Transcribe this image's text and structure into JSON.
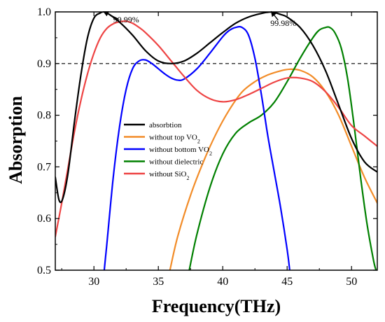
{
  "chart_data": {
    "type": "line",
    "title": "",
    "xlabel": "Frequency(THz)",
    "ylabel": "Absorption",
    "xlim": [
      27,
      52
    ],
    "ylim": [
      0.5,
      1.0
    ],
    "xticks": [
      30,
      35,
      40,
      45,
      50
    ],
    "yticks": [
      0.5,
      0.6,
      0.7,
      0.8,
      0.9,
      1.0
    ],
    "xtick_labels": [
      "30",
      "35",
      "40",
      "45",
      "50"
    ],
    "ytick_labels": [
      "0.5",
      "0.6",
      "0.7",
      "0.8",
      "0.9",
      "1.0"
    ],
    "grid": false,
    "legend_position": "center-left",
    "reference_line": {
      "y": 0.9,
      "style": "dashed",
      "color": "#000000"
    },
    "series": [
      {
        "name": "absorbtion",
        "color": "#000000",
        "x": [
          27.0,
          27.3,
          27.6,
          28.0,
          28.5,
          29.0,
          29.5,
          30.0,
          30.5,
          30.8,
          31.2,
          32.0,
          33.0,
          34.0,
          35.0,
          36.0,
          37.0,
          38.0,
          39.0,
          40.0,
          41.0,
          42.0,
          43.0,
          43.8,
          44.5,
          45.0,
          46.0,
          47.0,
          48.0,
          49.0,
          50.0,
          51.0,
          52.0
        ],
        "y": [
          0.68,
          0.635,
          0.64,
          0.69,
          0.79,
          0.88,
          0.95,
          0.988,
          0.998,
          0.9999,
          0.995,
          0.98,
          0.955,
          0.925,
          0.905,
          0.9,
          0.905,
          0.92,
          0.94,
          0.96,
          0.978,
          0.99,
          0.997,
          0.9998,
          0.995,
          0.99,
          0.97,
          0.935,
          0.885,
          0.82,
          0.755,
          0.71,
          0.69
        ]
      },
      {
        "name": "without top VO",
        "subscript": "2",
        "color": "#F28C28",
        "x": [
          35.9,
          36.5,
          37.5,
          38.5,
          39.5,
          40.5,
          41.5,
          42.5,
          43.5,
          44.5,
          45.2,
          46.0,
          47.0,
          48.0,
          49.0,
          50.0,
          51.0,
          52.0
        ],
        "y": [
          0.5,
          0.565,
          0.645,
          0.71,
          0.765,
          0.81,
          0.845,
          0.865,
          0.878,
          0.886,
          0.889,
          0.887,
          0.874,
          0.845,
          0.8,
          0.74,
          0.68,
          0.63
        ]
      },
      {
        "name": "without bottom VO",
        "subscript": "2",
        "color": "#0000FF",
        "x": [
          30.8,
          31.0,
          31.5,
          32.0,
          32.5,
          33.0,
          33.5,
          34.0,
          34.5,
          35.0,
          35.5,
          36.0,
          36.5,
          37.0,
          38.0,
          39.0,
          40.0,
          40.5,
          41.0,
          41.5,
          42.0,
          42.5,
          43.0,
          43.5,
          44.0,
          44.5,
          45.0,
          45.2
        ],
        "y": [
          0.5,
          0.55,
          0.68,
          0.78,
          0.85,
          0.89,
          0.905,
          0.907,
          0.9,
          0.89,
          0.88,
          0.872,
          0.868,
          0.87,
          0.89,
          0.92,
          0.952,
          0.964,
          0.97,
          0.97,
          0.955,
          0.91,
          0.84,
          0.76,
          0.69,
          0.62,
          0.54,
          0.5
        ]
      },
      {
        "name": "without dielectric",
        "color": "#008000",
        "x": [
          37.4,
          38.0,
          39.0,
          40.0,
          41.0,
          42.0,
          43.0,
          44.0,
          45.0,
          46.0,
          47.0,
          47.5,
          48.0,
          48.3,
          48.7,
          49.2,
          49.7,
          50.2,
          50.7,
          51.2,
          51.7,
          51.9
        ],
        "y": [
          0.5,
          0.57,
          0.66,
          0.725,
          0.765,
          0.785,
          0.8,
          0.825,
          0.865,
          0.91,
          0.95,
          0.965,
          0.97,
          0.97,
          0.96,
          0.93,
          0.87,
          0.78,
          0.68,
          0.59,
          0.52,
          0.5
        ]
      },
      {
        "name": "without SiO",
        "subscript": "2",
        "color": "#EE4444",
        "x": [
          27.0,
          27.5,
          28.0,
          28.5,
          29.0,
          29.5,
          30.0,
          30.5,
          31.0,
          31.5,
          32.0,
          32.5,
          33.0,
          33.5,
          34.0,
          35.0,
          36.0,
          37.0,
          38.0,
          39.0,
          40.0,
          41.0,
          42.0,
          43.0,
          44.0,
          45.0,
          46.0,
          47.0,
          48.0,
          49.0,
          50.0,
          51.0,
          52.0
        ],
        "y": [
          0.565,
          0.63,
          0.7,
          0.77,
          0.83,
          0.88,
          0.92,
          0.95,
          0.968,
          0.977,
          0.981,
          0.982,
          0.978,
          0.97,
          0.96,
          0.935,
          0.905,
          0.875,
          0.848,
          0.832,
          0.826,
          0.83,
          0.84,
          0.852,
          0.864,
          0.872,
          0.872,
          0.865,
          0.845,
          0.815,
          0.78,
          0.76,
          0.74
        ]
      }
    ],
    "annotations": [
      {
        "text": "99.99%",
        "x": 31.5,
        "y": 0.98,
        "arrow_to_x": 30.8,
        "arrow_to_y": 0.9999,
        "arrow_from_x": 31.9,
        "arrow_from_y": 0.986
      },
      {
        "text": "99.98%",
        "x": 43.7,
        "y": 0.973,
        "arrow_to_x": 43.8,
        "arrow_to_y": 0.9998,
        "arrow_from_x": 44.3,
        "arrow_from_y": 0.984
      }
    ]
  }
}
